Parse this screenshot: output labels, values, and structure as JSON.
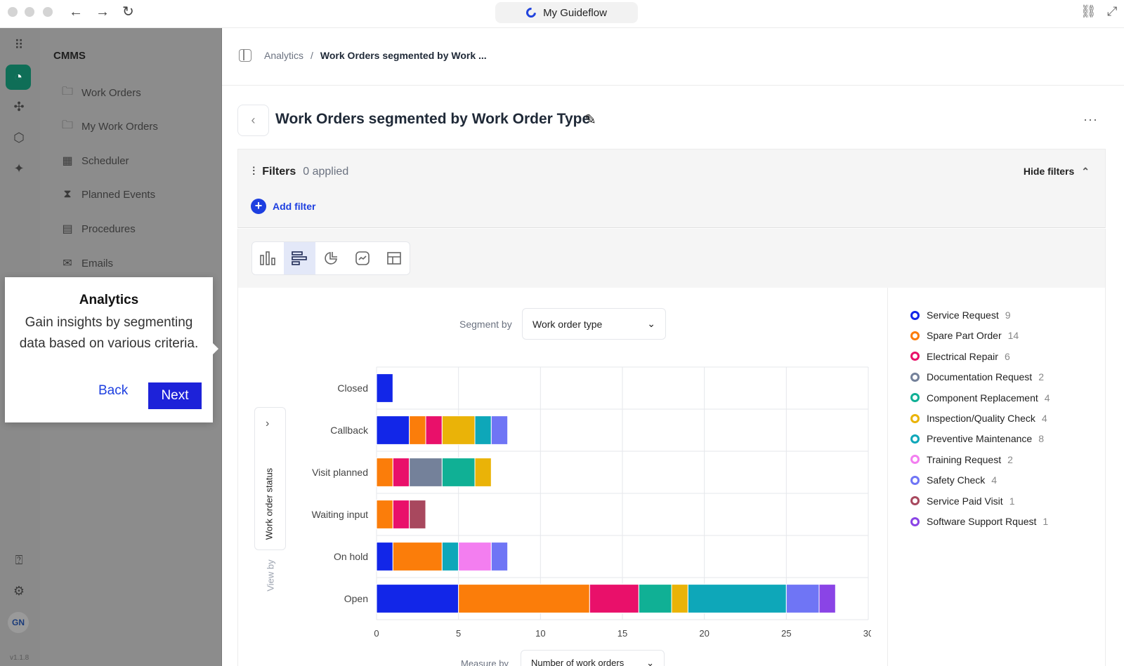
{
  "browser": {
    "tab_title": "My Guideflow"
  },
  "rail": {
    "avatar": "GN",
    "version": "v1.1.8"
  },
  "sidebar": {
    "title": "CMMS",
    "items": [
      {
        "label": "Work Orders",
        "icon": "folder-icon"
      },
      {
        "label": "My Work Orders",
        "icon": "folder-user-icon"
      },
      {
        "label": "Scheduler",
        "icon": "calendar-icon"
      },
      {
        "label": "Planned Events",
        "icon": "hourglass-icon"
      },
      {
        "label": "Procedures",
        "icon": "document-icon"
      },
      {
        "label": "Emails",
        "icon": "mail-icon"
      }
    ]
  },
  "tooltip": {
    "title": "Analytics",
    "body": "Gain insights by segmenting data based on various criteria.",
    "back_label": "Back",
    "next_label": "Next"
  },
  "breadcrumb": {
    "parent": "Analytics",
    "separator": "/",
    "current": "Work Orders segmented by Work ..."
  },
  "page": {
    "title": "Work Orders segmented by Work Order Type",
    "more": "···"
  },
  "filters": {
    "label": "Filters",
    "count": "0 applied",
    "hide_label": "Hide filters",
    "add_label": "Add filter"
  },
  "controls": {
    "segment_label": "Segment by",
    "segment_value": "Work order type",
    "view_by_label": "View by",
    "view_by_value": "Work order status",
    "measure_label": "Measure by",
    "measure_value": "Number of work orders"
  },
  "colors": {
    "accent": "#1d3fe0",
    "brand_green": "#0f6e57"
  },
  "chart_data": {
    "type": "bar",
    "orientation": "horizontal",
    "stacked": true,
    "categories": [
      "Closed",
      "Callback",
      "Visit planned",
      "Waiting input",
      "On hold",
      "Open"
    ],
    "xlim": [
      0,
      30
    ],
    "xticks": [
      "0",
      "5",
      "10",
      "15",
      "20",
      "25",
      "30"
    ],
    "grid": true,
    "legend_position": "right",
    "series": [
      {
        "name": "Service Request",
        "total": "9",
        "color": "#1226e8",
        "values": [
          1,
          2,
          0,
          0,
          1,
          5
        ]
      },
      {
        "name": "Spare Part Order",
        "total": "14",
        "color": "#fb7d0a",
        "values": [
          0,
          1,
          1,
          1,
          3,
          8
        ]
      },
      {
        "name": "Electrical Repair",
        "total": "6",
        "color": "#e9106a",
        "values": [
          0,
          1,
          1,
          1,
          0,
          3
        ]
      },
      {
        "name": "Documentation Request",
        "total": "2",
        "color": "#74819a",
        "values": [
          0,
          0,
          2,
          0,
          0,
          0
        ]
      },
      {
        "name": "Component Replacement",
        "total": "4",
        "color": "#10b095",
        "values": [
          0,
          0,
          2,
          0,
          0,
          2
        ]
      },
      {
        "name": "Inspection/Quality Check",
        "total": "4",
        "color": "#eab308",
        "values": [
          0,
          2,
          1,
          0,
          0,
          1
        ]
      },
      {
        "name": "Preventive Maintenance",
        "total": "8",
        "color": "#0ea7b9",
        "values": [
          0,
          1,
          0,
          0,
          1,
          6
        ]
      },
      {
        "name": "Training Request",
        "total": "2",
        "color": "#f37ef0",
        "values": [
          0,
          0,
          0,
          0,
          2,
          0
        ]
      },
      {
        "name": "Safety Check",
        "total": "4",
        "color": "#6f75f5",
        "values": [
          0,
          1,
          0,
          0,
          1,
          2
        ]
      },
      {
        "name": "Service Paid Visit",
        "total": "1",
        "color": "#a8485e",
        "values": [
          0,
          0,
          0,
          1,
          0,
          0
        ]
      },
      {
        "name": "Software Support Rquest",
        "total": "1",
        "color": "#8a44e6",
        "values": [
          0,
          0,
          0,
          0,
          0,
          1
        ]
      }
    ]
  }
}
